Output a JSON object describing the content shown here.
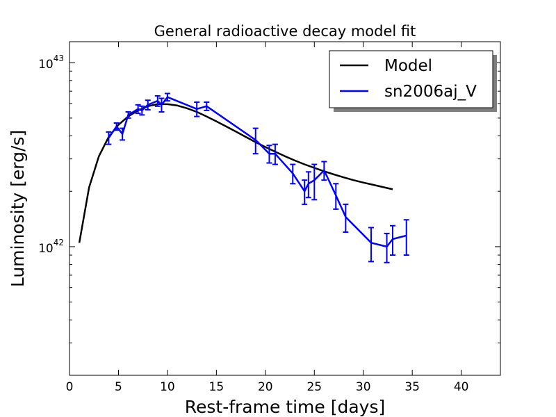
{
  "chart_data": {
    "type": "line",
    "title": "General radioactive decay model fit",
    "xlabel": "Rest-frame time [days]",
    "ylabel": "Luminosity [erg/s]",
    "xlim": [
      0,
      44
    ],
    "ylim": [
      2e+41,
      1.3e+43
    ],
    "yscale": "log",
    "xticks": [
      0,
      5,
      10,
      15,
      20,
      25,
      30,
      35,
      40
    ],
    "yticks": [
      {
        "value": 1e+42,
        "base": "10",
        "exp": "42"
      },
      {
        "value": 1e+43,
        "base": "10",
        "exp": "43"
      }
    ],
    "legend": {
      "placement": "top-right"
    },
    "series": [
      {
        "name": "Model",
        "color": "#000000",
        "x": [
          1,
          2,
          3,
          4,
          5,
          6,
          7,
          8,
          9,
          10,
          11,
          12,
          13,
          14,
          15,
          16,
          17,
          18,
          19,
          20,
          21,
          22,
          23,
          24,
          25,
          26,
          27,
          28,
          29,
          30,
          31,
          32,
          33
        ],
        "y": [
          1.05e+42,
          2.1e+42,
          3.1e+42,
          3.95e+42,
          4.6e+42,
          5.1e+42,
          5.5e+42,
          5.8e+42,
          5.95e+42,
          5.95e+42,
          5.85e+42,
          5.65e+42,
          5.4e+42,
          5.1e+42,
          4.8e+42,
          4.5e+42,
          4.22e+42,
          3.95e+42,
          3.7e+42,
          3.48e+42,
          3.28e+42,
          3.1e+42,
          2.94e+42,
          2.8e+42,
          2.68e+42,
          2.57e+42,
          2.47e+42,
          2.38e+42,
          2.3e+42,
          2.23e+42,
          2.17e+42,
          2.11e+42,
          2.05e+42
        ]
      },
      {
        "name": "sn2006aj_V",
        "color": "#0000ff",
        "x": [
          4.0,
          4.8,
          5.4,
          6.0,
          7.0,
          7.4,
          8.0,
          9.0,
          9.4,
          10.0,
          13.0,
          14.0,
          19.0,
          20.4,
          21.0,
          22.8,
          24.0,
          24.4,
          25.0,
          26.0,
          27.2,
          28.2,
          30.8,
          32.4,
          33.0,
          34.4
        ],
        "y": [
          3.9e+42,
          4.5e+42,
          4.1e+42,
          5.2e+42,
          5.6e+42,
          5.5e+42,
          5.9e+42,
          6.2e+42,
          5.9e+42,
          6.5e+42,
          5.6e+42,
          5.8e+42,
          3.8e+42,
          3.2e+42,
          3.2e+42,
          2.5e+42,
          2e+42,
          2.2e+42,
          2.3e+42,
          2.6e+42,
          1.9e+42,
          1.45e+42,
          1.05e+42,
          1e+42,
          1.1e+42,
          1.15e+42
        ],
        "yerr": [
          3e+41,
          2e+41,
          3e+41,
          2e+41,
          3e+41,
          3e+41,
          3.5e+41,
          4e+41,
          5e+41,
          3e+41,
          5e+41,
          3e+41,
          6e+41,
          3.5e+41,
          4e+41,
          3e+41,
          3e+41,
          3.5e+41,
          5e+41,
          3e+41,
          3e+41,
          2.5e+41,
          2.2e+41,
          1.8e+41,
          2e+41,
          2.5e+41
        ]
      }
    ]
  }
}
